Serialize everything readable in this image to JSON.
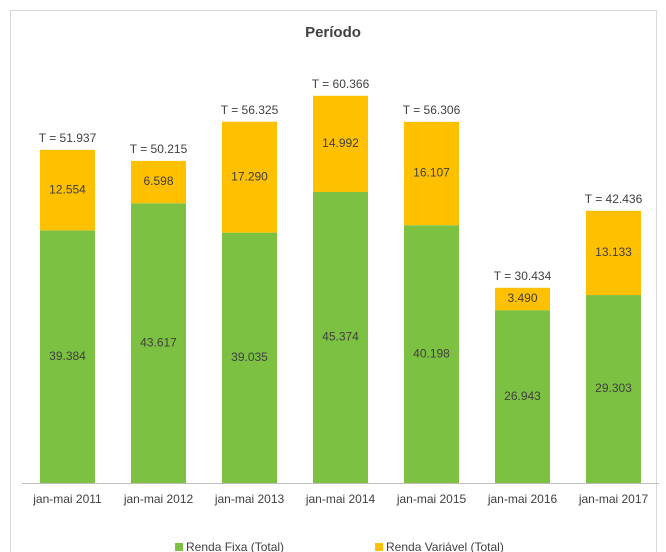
{
  "chart_data": {
    "type": "stacked_bar",
    "title": "Período",
    "categories": [
      "jan-mai 2011",
      "jan-mai 2012",
      "jan-mai 2013",
      "jan-mai 2014",
      "jan-mai 2015",
      "jan-mai 2016",
      "jan-mai 2017"
    ],
    "series": [
      {
        "name": "Renda Fixa (Total)",
        "color": "#7cc142",
        "values": [
          39384,
          43617,
          39035,
          45374,
          40198,
          26943,
          29303
        ],
        "value_labels": [
          "39.384",
          "43.617",
          "39.035",
          "45.374",
          "40.198",
          "26.943",
          "29.303"
        ]
      },
      {
        "name": "Renda Variável (Total)",
        "color": "#ffc000",
        "values": [
          12554,
          6598,
          17290,
          14992,
          16107,
          3490,
          13133
        ],
        "value_labels": [
          "12.554",
          "6.598",
          "17.290",
          "14.992",
          "16.107",
          "3.490",
          "13.133"
        ]
      }
    ],
    "totals": [
      51937,
      50215,
      56325,
      60366,
      56306,
      30434,
      42436
    ],
    "total_labels": [
      "T = 51.937",
      "T = 50.215",
      "T = 56.325",
      "T = 60.366",
      "T = 56.306",
      "T = 30.434",
      "T = 42.436"
    ],
    "ylim": [
      0,
      70000
    ],
    "legend": "bottom"
  }
}
